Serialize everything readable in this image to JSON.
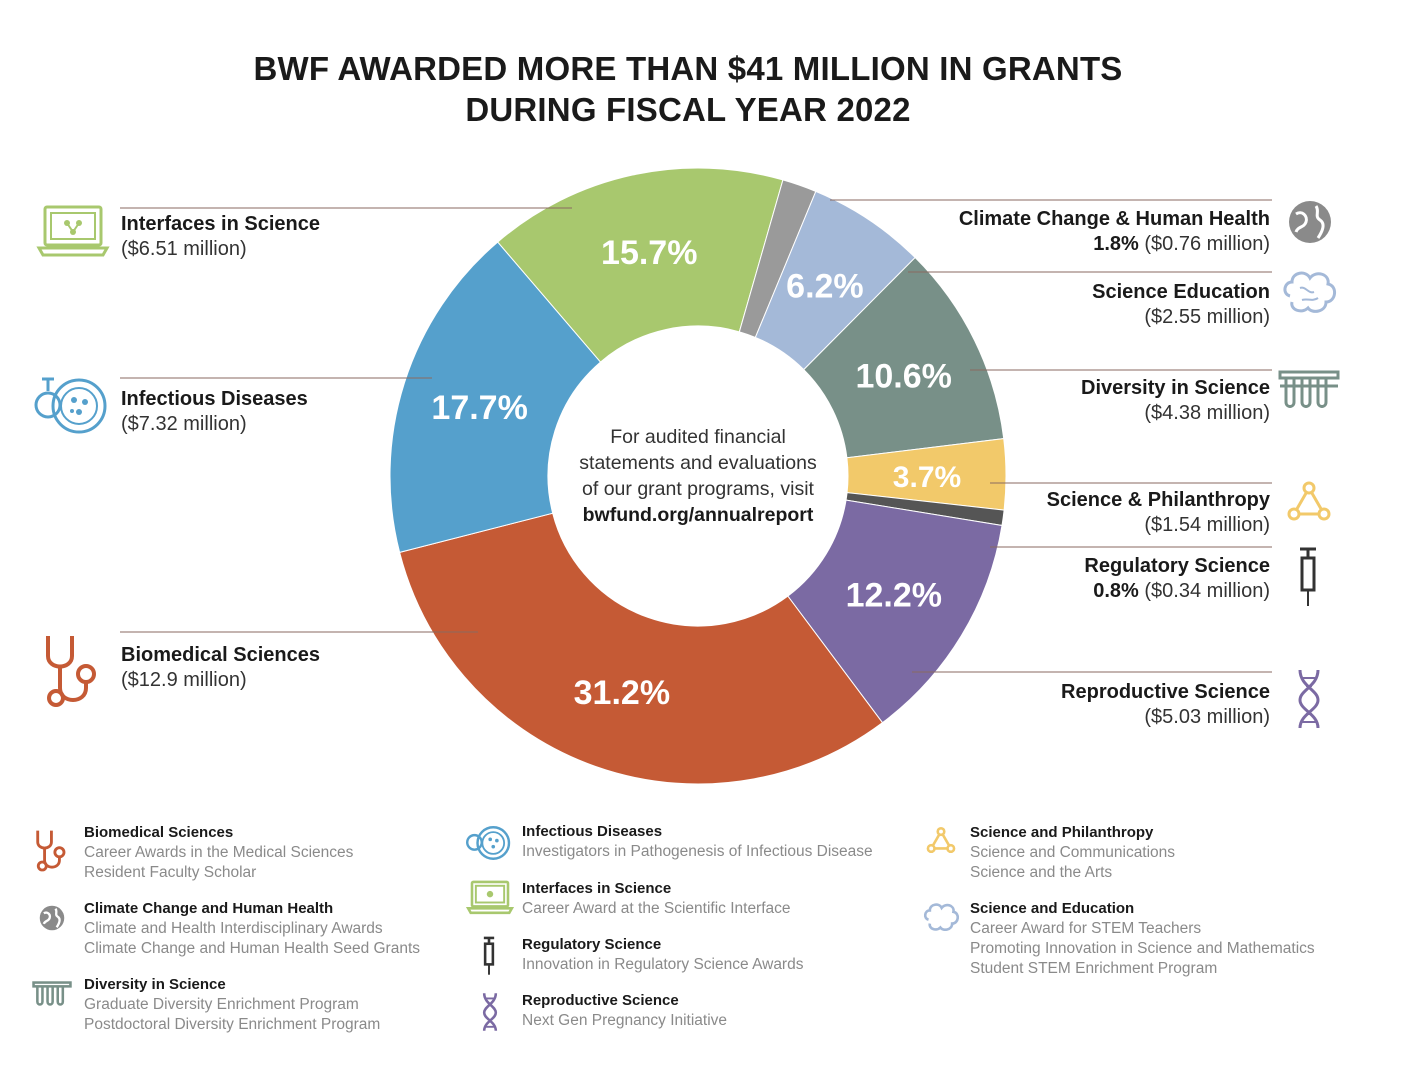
{
  "title": {
    "line1": "BWF AWARDED MORE THAN $41 MILLION IN GRANTS",
    "line2": "DURING FISCAL YEAR 2022"
  },
  "center_note": {
    "line1": "For audited financial",
    "line2": "statements and evaluations",
    "line3": "of our grant programs, visit",
    "link": "bwfund.org/annualreport"
  },
  "colors": {
    "interfaces": "#a8c86e",
    "climate": "#9a9a9a",
    "education": "#a4b9d8",
    "diversity": "#789088",
    "philanthropy": "#f2c96a",
    "regulatory": "#555555",
    "reproductive": "#7b6aa3",
    "biomedical": "#c55a35",
    "infectious": "#55a0cc"
  },
  "chart_data": {
    "type": "pie",
    "variant": "donut",
    "title": "BWF AWARDED MORE THAN $41 MILLION IN GRANTS DURING FISCAL YEAR 2022",
    "slices": [
      {
        "name": "Interfaces in Science",
        "percent": 15.7,
        "label": "15.7%",
        "amount": "($6.51 million)",
        "color": "#a8c86e",
        "icon": "laptop-icon"
      },
      {
        "name": "Climate Change & Human Health",
        "percent": 1.8,
        "label": "1.8%",
        "amount": "($0.76 million)",
        "color": "#9a9a9a",
        "icon": "globe-icon"
      },
      {
        "name": "Science Education",
        "percent": 6.2,
        "label": "6.2%",
        "amount": "($2.55 million)",
        "color": "#a4b9d8",
        "icon": "brain-icon"
      },
      {
        "name": "Diversity in Science",
        "percent": 10.6,
        "label": "10.6%",
        "amount": "($4.38 million)",
        "color": "#789088",
        "icon": "test-tubes-icon"
      },
      {
        "name": "Science & Philanthropy",
        "percent": 3.7,
        "label": "3.7%",
        "amount": "($1.54 million)",
        "color": "#f2c96a",
        "icon": "network-icon"
      },
      {
        "name": "Regulatory Science",
        "percent": 0.8,
        "label": "0.8%",
        "amount": "($0.34 million)",
        "color": "#555555",
        "icon": "syringe-icon"
      },
      {
        "name": "Reproductive Science",
        "percent": 12.2,
        "label": "12.2%",
        "amount": "($5.03 million)",
        "color": "#7b6aa3",
        "icon": "dna-icon"
      },
      {
        "name": "Biomedical Sciences",
        "percent": 31.2,
        "label": "31.2%",
        "amount": "($12.9 million)",
        "color": "#c55a35",
        "icon": "stethoscope-icon"
      },
      {
        "name": "Infectious Diseases",
        "percent": 17.7,
        "label": "17.7%",
        "amount": "($7.32 million)",
        "color": "#55a0cc",
        "icon": "petri-dish-icon"
      }
    ]
  },
  "callouts": {
    "interfaces": {
      "name": "Interfaces in Science",
      "amount": "($6.51 million)"
    },
    "infectious": {
      "name": "Infectious Diseases",
      "amount": "($7.32 million)"
    },
    "biomedical": {
      "name": "Biomedical Sciences",
      "amount": "($12.9 million)"
    },
    "climate": {
      "name": "Climate Change & Human Health",
      "pct": "1.8%",
      "amount": "($0.76 million)"
    },
    "education": {
      "name": "Science Education",
      "amount": "($2.55 million)"
    },
    "diversity": {
      "name": "Diversity in Science",
      "amount": "($4.38 million)"
    },
    "philanthropy": {
      "name": "Science & Philanthropy",
      "amount": "($1.54 million)"
    },
    "regulatory": {
      "name": "Regulatory Science",
      "pct": "0.8%",
      "amount": "($0.34 million)"
    },
    "reproductive": {
      "name": "Reproductive Science",
      "amount": "($5.03 million)"
    }
  },
  "legend": {
    "biomedical": {
      "title": "Biomedical Sciences",
      "items": [
        "Career Awards in the Medical Sciences",
        "Resident Faculty Scholar"
      ]
    },
    "climate": {
      "title": "Climate Change and Human Health",
      "items": [
        "Climate and Health Interdisciplinary Awards",
        "Climate Change and Human Health Seed Grants"
      ]
    },
    "diversity": {
      "title": "Diversity in Science",
      "items": [
        "Graduate Diversity Enrichment Program",
        "Postdoctoral Diversity Enrichment Program"
      ]
    },
    "infectious": {
      "title": "Infectious Diseases",
      "items": [
        "Investigators in Pathogenesis of Infectious Disease"
      ]
    },
    "interfaces": {
      "title": "Interfaces in Science",
      "items": [
        "Career Award at the Scientific Interface"
      ]
    },
    "regulatory": {
      "title": "Regulatory Science",
      "items": [
        "Innovation in Regulatory Science Awards"
      ]
    },
    "reproductive": {
      "title": "Reproductive Science",
      "items": [
        "Next Gen Pregnancy Initiative"
      ]
    },
    "philanthropy": {
      "title": "Science and Philanthropy",
      "items": [
        "Science and Communications",
        "Science and the Arts"
      ]
    },
    "education": {
      "title": "Science and Education",
      "items": [
        "Career Award for STEM Teachers",
        "Promoting Innovation in Science and Mathematics",
        "Student STEM Enrichment Program"
      ]
    }
  }
}
